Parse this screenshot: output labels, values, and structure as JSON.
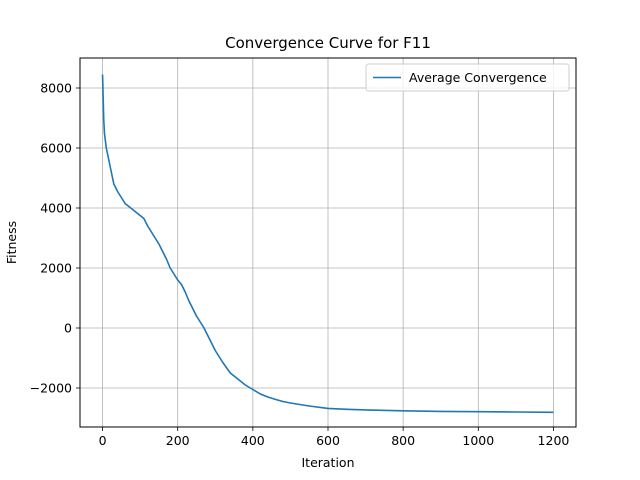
{
  "chart_data": {
    "type": "line",
    "title": "Convergence Curve for F11",
    "xlabel": "Iteration",
    "ylabel": "Fitness",
    "xlim": [
      -60,
      1260
    ],
    "ylim": [
      -3300,
      9000
    ],
    "xticks": [
      0,
      200,
      400,
      600,
      800,
      1000,
      1200
    ],
    "yticks": [
      -2000,
      0,
      2000,
      4000,
      6000,
      8000
    ],
    "grid": true,
    "legend_position": "top-right",
    "series": [
      {
        "name": "Average Convergence",
        "color": "#1f77b4",
        "x": [
          0,
          1,
          2,
          3,
          5,
          8,
          10,
          15,
          20,
          25,
          30,
          40,
          50,
          60,
          70,
          80,
          90,
          100,
          110,
          120,
          130,
          140,
          150,
          160,
          170,
          180,
          190,
          200,
          210,
          220,
          230,
          240,
          250,
          260,
          270,
          280,
          290,
          300,
          320,
          340,
          360,
          380,
          400,
          420,
          440,
          460,
          480,
          500,
          550,
          600,
          650,
          700,
          800,
          900,
          1000,
          1100,
          1200
        ],
        "y": [
          8450,
          8000,
          7500,
          7000,
          6500,
          6200,
          6000,
          5700,
          5400,
          5100,
          4800,
          4550,
          4350,
          4150,
          4050,
          3950,
          3850,
          3750,
          3650,
          3400,
          3200,
          3000,
          2800,
          2550,
          2300,
          2000,
          1800,
          1600,
          1450,
          1200,
          900,
          650,
          400,
          200,
          0,
          -250,
          -500,
          -750,
          -1150,
          -1500,
          -1700,
          -1900,
          -2050,
          -2200,
          -2300,
          -2380,
          -2450,
          -2500,
          -2600,
          -2680,
          -2710,
          -2730,
          -2760,
          -2780,
          -2790,
          -2800,
          -2810
        ]
      }
    ]
  }
}
